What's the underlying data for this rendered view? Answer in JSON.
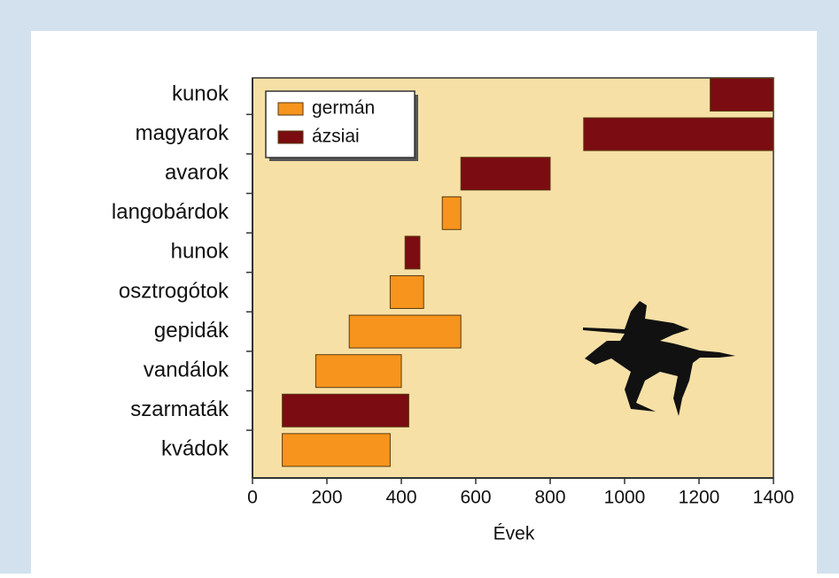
{
  "chart_data": {
    "type": "floating-bar",
    "categories": [
      "kunok",
      "magyarok",
      "avarok",
      "langobárdok",
      "hunok",
      "osztrogótok",
      "gepidák",
      "vandálok",
      "szarmaták",
      "kvádok"
    ],
    "series": [
      {
        "name": "germán",
        "color": "#f7941d",
        "start": [
          null,
          null,
          null,
          510,
          null,
          370,
          260,
          170,
          null,
          80
        ],
        "end": [
          null,
          null,
          null,
          560,
          null,
          460,
          560,
          400,
          null,
          370
        ]
      },
      {
        "name": "ázsiai",
        "color": "#7a0c12",
        "start": [
          1230,
          890,
          560,
          null,
          410,
          null,
          null,
          null,
          80,
          null
        ],
        "end": [
          1400,
          1400,
          800,
          null,
          450,
          null,
          null,
          null,
          420,
          null
        ]
      }
    ],
    "xlabel": "Évek",
    "xlim": [
      0,
      1400
    ],
    "xticks": [
      0,
      200,
      400,
      600,
      800,
      1000,
      1200,
      1400
    ],
    "legend": "upper left"
  }
}
